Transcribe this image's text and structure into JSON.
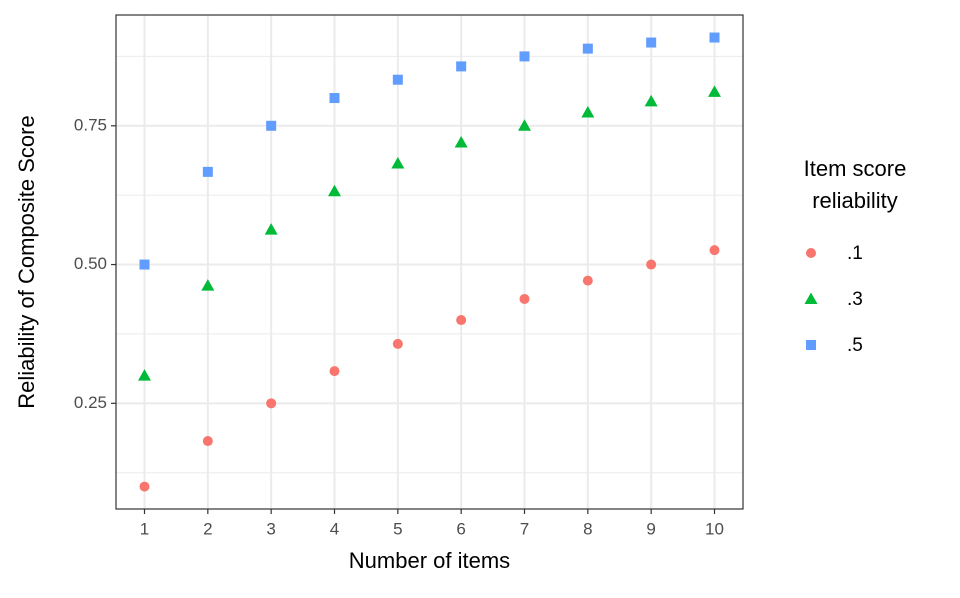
{
  "chart_data": {
    "type": "scatter",
    "x_label": "Number of items",
    "y_label": "Reliability of Composite Score",
    "legend_title": [
      "Item score",
      "reliability"
    ],
    "x": [
      1,
      2,
      3,
      4,
      5,
      6,
      7,
      8,
      9,
      10
    ],
    "series": [
      {
        "name": ".1",
        "color": "#f8766d",
        "shape": "circle",
        "values": [
          0.1,
          0.182,
          0.25,
          0.308,
          0.357,
          0.4,
          0.438,
          0.471,
          0.5,
          0.526
        ]
      },
      {
        "name": ".3",
        "color": "#00ba38",
        "shape": "triangle",
        "values": [
          0.3,
          0.462,
          0.563,
          0.632,
          0.682,
          0.72,
          0.75,
          0.774,
          0.794,
          0.811
        ]
      },
      {
        "name": ".5",
        "color": "#619cff",
        "shape": "square",
        "values": [
          0.5,
          0.667,
          0.75,
          0.8,
          0.833,
          0.857,
          0.875,
          0.889,
          0.9,
          0.909
        ]
      }
    ],
    "xlim": [
      0.55,
      10.45
    ],
    "xticks": [
      1,
      2,
      3,
      4,
      5,
      6,
      7,
      8,
      9,
      10
    ],
    "ylim": [
      0.0596,
      0.9496
    ],
    "yticks": [
      0.25,
      {
        "value": 0.5,
        "label": "0.50"
      },
      0.75
    ],
    "grid": true,
    "legend": "right"
  }
}
